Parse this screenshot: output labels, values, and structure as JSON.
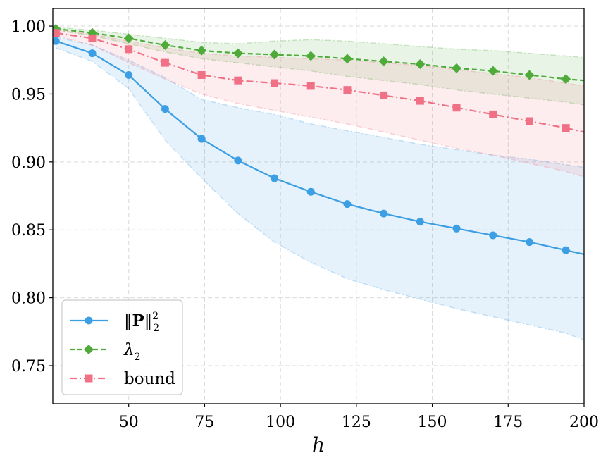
{
  "chart_data": {
    "type": "line",
    "xlabel": "h",
    "ylabel": "",
    "title": "",
    "xlim": [
      25,
      200
    ],
    "ylim": [
      0.722,
      1.013
    ],
    "grid": true,
    "legend_position": "bottom-left",
    "x_ticks": [
      50,
      75,
      100,
      125,
      150,
      175,
      200
    ],
    "x_tick_labels": [
      "50",
      "75",
      "100",
      "125",
      "150",
      "175",
      "200"
    ],
    "y_ticks": [
      0.75,
      0.8,
      0.85,
      0.9,
      0.95,
      1.0
    ],
    "y_tick_labels": [
      "0.75",
      "0.80",
      "0.85",
      "0.90",
      "0.95",
      "1.00"
    ],
    "x": [
      26,
      38,
      50,
      62,
      74,
      86,
      98,
      110,
      122,
      134,
      146,
      158,
      170,
      182,
      194,
      200
    ],
    "series": [
      {
        "name": "||P||_2^2",
        "legend_main": "‖P‖",
        "legend_sup": "2",
        "legend_sub": "2",
        "color": "#3c9ee3",
        "marker": "circle",
        "linestyle": "solid",
        "values": [
          0.989,
          0.98,
          0.964,
          0.939,
          0.917,
          0.901,
          0.888,
          0.878,
          0.869,
          0.862,
          0.856,
          0.851,
          0.846,
          0.841,
          0.835,
          0.832
        ],
        "band_upper": [
          0.992,
          0.986,
          0.975,
          0.962,
          0.946,
          0.94,
          0.935,
          0.928,
          0.923,
          0.918,
          0.913,
          0.909,
          0.905,
          0.902,
          0.898,
          0.896
        ],
        "band_lower": [
          0.984,
          0.974,
          0.954,
          0.916,
          0.888,
          0.862,
          0.841,
          0.826,
          0.814,
          0.806,
          0.799,
          0.792,
          0.786,
          0.78,
          0.774,
          0.769
        ]
      },
      {
        "name": "λ2",
        "legend_main": "λ",
        "legend_sub": "2",
        "color": "#4eab3a",
        "marker": "diamond",
        "linestyle": "dashed",
        "values": [
          0.998,
          0.995,
          0.991,
          0.986,
          0.982,
          0.98,
          0.979,
          0.978,
          0.976,
          0.974,
          0.972,
          0.969,
          0.967,
          0.964,
          0.961,
          0.96
        ],
        "band_upper": [
          0.999,
          0.997,
          0.994,
          0.991,
          0.988,
          0.987,
          0.989,
          0.99,
          0.989,
          0.987,
          0.985,
          0.983,
          0.982,
          0.98,
          0.978,
          0.977
        ],
        "band_lower": [
          0.997,
          0.993,
          0.987,
          0.981,
          0.976,
          0.973,
          0.97,
          0.967,
          0.963,
          0.96,
          0.957,
          0.953,
          0.95,
          0.947,
          0.944,
          0.942
        ]
      },
      {
        "name": "bound",
        "legend_main": "bound",
        "color": "#f07186",
        "marker": "square",
        "linestyle": "dashdot",
        "values": [
          0.995,
          0.991,
          0.983,
          0.973,
          0.964,
          0.96,
          0.958,
          0.956,
          0.953,
          0.949,
          0.945,
          0.94,
          0.935,
          0.93,
          0.925,
          0.922
        ],
        "band_upper": [
          0.997,
          0.994,
          0.989,
          0.984,
          0.98,
          0.978,
          0.977,
          0.976,
          0.975,
          0.973,
          0.971,
          0.968,
          0.965,
          0.962,
          0.958,
          0.956
        ],
        "band_lower": [
          0.993,
          0.986,
          0.973,
          0.961,
          0.95,
          0.943,
          0.938,
          0.933,
          0.928,
          0.922,
          0.916,
          0.91,
          0.905,
          0.899,
          0.893,
          0.889
        ]
      }
    ]
  }
}
